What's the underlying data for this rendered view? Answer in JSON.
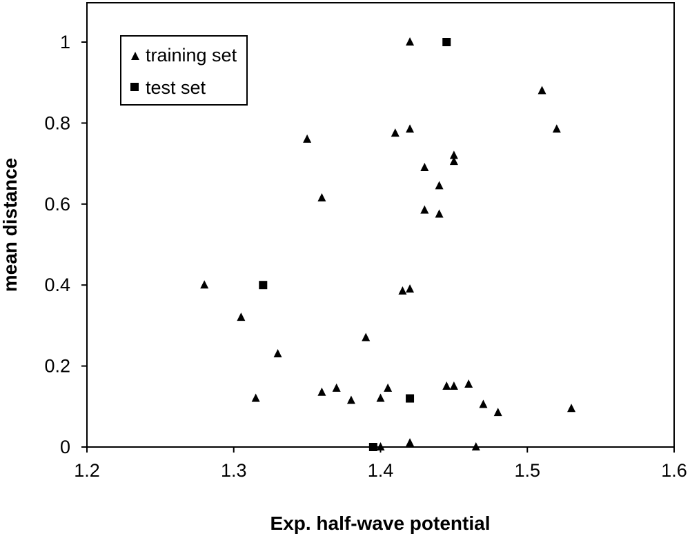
{
  "chart_data": {
    "type": "scatter",
    "title": "",
    "xlabel": "Exp. half-wave potential",
    "ylabel": "mean distance",
    "xlim": [
      1.2,
      1.6
    ],
    "ylim": [
      0,
      1.1
    ],
    "x_ticks": [
      "1.2",
      "1.3",
      "1.4",
      "1.5",
      "1.6"
    ],
    "y_ticks": [
      "0",
      "0.2",
      "0.4",
      "0.6",
      "0.8",
      "1"
    ],
    "grid": false,
    "legend_position": "top-left",
    "series": [
      {
        "name": "training set",
        "marker": "triangle",
        "color": "#000000",
        "points": [
          [
            1.28,
            0.4
          ],
          [
            1.305,
            0.32
          ],
          [
            1.315,
            0.12
          ],
          [
            1.33,
            0.23
          ],
          [
            1.35,
            0.76
          ],
          [
            1.36,
            0.615
          ],
          [
            1.36,
            0.135
          ],
          [
            1.37,
            0.145
          ],
          [
            1.38,
            0.115
          ],
          [
            1.39,
            0.27
          ],
          [
            1.4,
            0.12
          ],
          [
            1.4,
            0.0
          ],
          [
            1.405,
            0.145
          ],
          [
            1.41,
            0.775
          ],
          [
            1.415,
            0.385
          ],
          [
            1.42,
            1.0
          ],
          [
            1.42,
            0.785
          ],
          [
            1.42,
            0.39
          ],
          [
            1.42,
            0.01
          ],
          [
            1.43,
            0.69
          ],
          [
            1.43,
            0.585
          ],
          [
            1.44,
            0.645
          ],
          [
            1.44,
            0.575
          ],
          [
            1.445,
            0.15
          ],
          [
            1.45,
            0.72
          ],
          [
            1.45,
            0.705
          ],
          [
            1.45,
            0.15
          ],
          [
            1.46,
            0.155
          ],
          [
            1.465,
            0.0
          ],
          [
            1.47,
            0.105
          ],
          [
            1.48,
            0.085
          ],
          [
            1.51,
            0.88
          ],
          [
            1.52,
            0.785
          ],
          [
            1.53,
            0.095
          ]
        ]
      },
      {
        "name": "test set",
        "marker": "square",
        "color": "#000000",
        "points": [
          [
            1.445,
            1.0
          ],
          [
            1.32,
            0.4
          ],
          [
            1.42,
            0.12
          ],
          [
            1.395,
            0.0
          ]
        ]
      }
    ]
  }
}
